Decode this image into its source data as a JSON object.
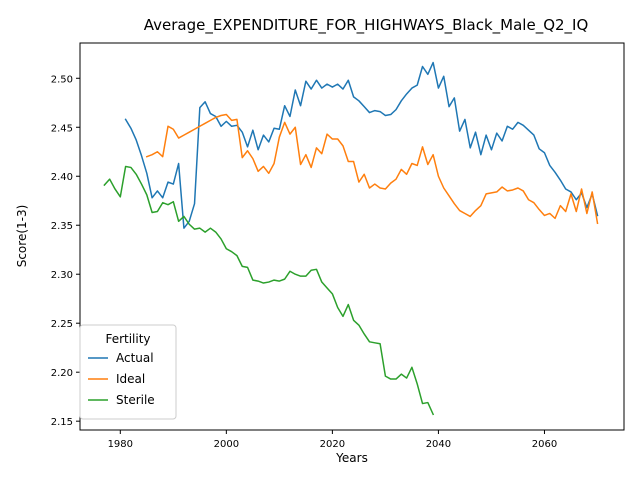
{
  "chart_data": {
    "type": "line",
    "title": "Average_EXPENDITURE_FOR_HIGHWAYS_Black_Male_Q2_IQ",
    "xlabel": "Years",
    "ylabel": "Score(1-3)",
    "xlim": [
      1972.4,
      2075.0
    ],
    "ylim": [
      2.141,
      2.536
    ],
    "xticks": [
      1980,
      2000,
      2020,
      2040,
      2060
    ],
    "yticks": [
      2.15,
      2.2,
      2.25,
      2.3,
      2.35,
      2.4,
      2.45,
      2.5
    ],
    "ytick_labels": [
      "2.15",
      "2.20",
      "2.25",
      "2.30",
      "2.35",
      "2.40",
      "2.45",
      "2.50"
    ],
    "grid": false,
    "legend": {
      "title": "Fertility",
      "position": "lower-left"
    },
    "series": [
      {
        "name": "Actual",
        "color": "#1f77b4",
        "x": [
          1981,
          1982,
          1983,
          1984,
          1985,
          1986,
          1987,
          1988,
          1989,
          1990,
          1991,
          1992,
          1993,
          1994,
          1995,
          1996,
          1997,
          1998,
          1999,
          2000,
          2001,
          2002,
          2003,
          2004,
          2005,
          2006,
          2007,
          2008,
          2009,
          2010,
          2011,
          2012,
          2013,
          2014,
          2015,
          2016,
          2017,
          2018,
          2019,
          2020,
          2021,
          2022,
          2023,
          2024,
          2025,
          2026,
          2027,
          2028,
          2029,
          2030,
          2031,
          2032,
          2033,
          2034,
          2035,
          2036,
          2037,
          2038,
          2039,
          2040,
          2041,
          2042,
          2043,
          2044,
          2045,
          2046,
          2047,
          2048,
          2049,
          2050,
          2051,
          2052,
          2053,
          2054,
          2055,
          2056,
          2057,
          2058,
          2059,
          2060,
          2061,
          2062,
          2063,
          2064,
          2065,
          2066,
          2067,
          2068,
          2069,
          2070
        ],
        "y": [
          2.458,
          2.449,
          2.437,
          2.421,
          2.403,
          2.378,
          2.385,
          2.378,
          2.394,
          2.392,
          2.413,
          2.347,
          2.354,
          2.372,
          2.47,
          2.476,
          2.464,
          2.461,
          2.451,
          2.456,
          2.451,
          2.452,
          2.445,
          2.43,
          2.447,
          2.427,
          2.442,
          2.435,
          2.449,
          2.448,
          2.472,
          2.461,
          2.488,
          2.472,
          2.497,
          2.489,
          2.498,
          2.49,
          2.494,
          2.491,
          2.494,
          2.489,
          2.498,
          2.481,
          2.477,
          2.471,
          2.465,
          2.467,
          2.466,
          2.462,
          2.463,
          2.468,
          2.477,
          2.484,
          2.49,
          2.493,
          2.512,
          2.504,
          2.516,
          2.49,
          2.502,
          2.471,
          2.48,
          2.446,
          2.458,
          2.429,
          2.445,
          2.422,
          2.442,
          2.427,
          2.444,
          2.436,
          2.451,
          2.448,
          2.455,
          2.452,
          2.447,
          2.442,
          2.428,
          2.424,
          2.411,
          2.404,
          2.396,
          2.387,
          2.384,
          2.376,
          2.383,
          2.368,
          2.382,
          2.36
        ]
      },
      {
        "name": "Ideal",
        "color": "#ff7f0e",
        "x": [
          1985,
          1986,
          1987,
          1988,
          1989,
          1990,
          1991,
          1992,
          1993,
          1994,
          1995,
          1996,
          1997,
          1998,
          1999,
          2000,
          2001,
          2002,
          2003,
          2004,
          2005,
          2006,
          2007,
          2008,
          2009,
          2010,
          2011,
          2012,
          2013,
          2014,
          2015,
          2016,
          2017,
          2018,
          2019,
          2020,
          2021,
          2022,
          2023,
          2024,
          2025,
          2026,
          2027,
          2028,
          2029,
          2030,
          2031,
          2032,
          2033,
          2034,
          2035,
          2036,
          2037,
          2038,
          2039,
          2040,
          2041,
          2042,
          2043,
          2044,
          2045,
          2046,
          2047,
          2048,
          2049,
          2050,
          2051,
          2052,
          2053,
          2054,
          2055,
          2056,
          2057,
          2058,
          2059,
          2060,
          2061,
          2062,
          2063,
          2064,
          2065,
          2066,
          2067,
          2068,
          2069,
          2070
        ],
        "y": [
          2.42,
          2.422,
          2.425,
          2.42,
          2.451,
          2.448,
          2.439,
          2.442,
          2.445,
          2.448,
          2.451,
          2.454,
          2.457,
          2.46,
          2.462,
          2.463,
          2.457,
          2.458,
          2.419,
          2.426,
          2.418,
          2.405,
          2.41,
          2.403,
          2.413,
          2.44,
          2.455,
          2.443,
          2.45,
          2.412,
          2.422,
          2.409,
          2.429,
          2.423,
          2.443,
          2.438,
          2.438,
          2.431,
          2.415,
          2.415,
          2.394,
          2.402,
          2.388,
          2.392,
          2.388,
          2.387,
          2.393,
          2.397,
          2.407,
          2.402,
          2.413,
          2.411,
          2.43,
          2.412,
          2.422,
          2.4,
          2.388,
          2.38,
          2.372,
          2.365,
          2.362,
          2.359,
          2.365,
          2.37,
          2.382,
          2.383,
          2.384,
          2.389,
          2.385,
          2.386,
          2.388,
          2.385,
          2.376,
          2.373,
          2.366,
          2.36,
          2.362,
          2.357,
          2.37,
          2.364,
          2.382,
          2.364,
          2.387,
          2.362,
          2.384,
          2.352
        ]
      },
      {
        "name": "Sterile",
        "color": "#2ca02c",
        "x": [
          1977,
          1978,
          1979,
          1980,
          1981,
          1982,
          1983,
          1984,
          1985,
          1986,
          1987,
          1988,
          1989,
          1990,
          1991,
          1992,
          1993,
          1994,
          1995,
          1996,
          1997,
          1998,
          1999,
          2000,
          2001,
          2002,
          2003,
          2004,
          2005,
          2006,
          2007,
          2008,
          2009,
          2010,
          2011,
          2012,
          2013,
          2014,
          2015,
          2016,
          2017,
          2018,
          2019,
          2020,
          2021,
          2022,
          2023,
          2024,
          2025,
          2026,
          2027,
          2028,
          2029,
          2030,
          2031,
          2032,
          2033,
          2034,
          2035,
          2036,
          2037,
          2038,
          2039
        ],
        "y": [
          2.391,
          2.397,
          2.387,
          2.379,
          2.41,
          2.409,
          2.402,
          2.392,
          2.381,
          2.363,
          2.364,
          2.373,
          2.371,
          2.374,
          2.354,
          2.359,
          2.351,
          2.346,
          2.347,
          2.343,
          2.347,
          2.343,
          2.336,
          2.326,
          2.323,
          2.319,
          2.308,
          2.307,
          2.294,
          2.293,
          2.291,
          2.292,
          2.294,
          2.293,
          2.295,
          2.303,
          2.3,
          2.298,
          2.298,
          2.304,
          2.305,
          2.292,
          2.286,
          2.28,
          2.266,
          2.257,
          2.269,
          2.253,
          2.248,
          2.239,
          2.231,
          2.23,
          2.229,
          2.196,
          2.193,
          2.193,
          2.198,
          2.194,
          2.205,
          2.188,
          2.168,
          2.169,
          2.157
        ]
      }
    ]
  }
}
